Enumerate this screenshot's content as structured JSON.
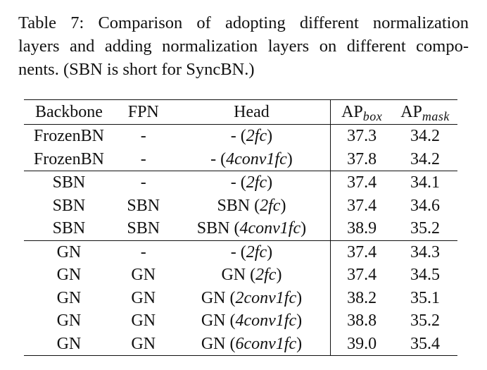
{
  "caption": {
    "lines": [
      "Table 7:  Comparison of adopting different normalization",
      "layers and adding normalization layers on different compo-",
      "nents. (SBN is short for SyncBN.)"
    ]
  },
  "table": {
    "headers": {
      "backbone": "Backbone",
      "fpn": "FPN",
      "head": "Head",
      "ap_box_main": "AP",
      "ap_box_sub": "box",
      "ap_mask_main": "AP",
      "ap_mask_sub": "mask"
    },
    "groups": [
      [
        {
          "backbone": "FrozenBN",
          "fpn": "-",
          "head_prefix": "- (",
          "head_italic": "2fc",
          "head_suffix": ")",
          "ap_box": "37.3",
          "ap_mask": "34.2"
        },
        {
          "backbone": "FrozenBN",
          "fpn": "-",
          "head_prefix": "- (",
          "head_italic": "4conv1fc",
          "head_suffix": ")",
          "ap_box": "37.8",
          "ap_mask": "34.2"
        }
      ],
      [
        {
          "backbone": "SBN",
          "fpn": "-",
          "head_prefix": "- (",
          "head_italic": "2fc",
          "head_suffix": ")",
          "ap_box": "37.4",
          "ap_mask": "34.1"
        },
        {
          "backbone": "SBN",
          "fpn": "SBN",
          "head_prefix": "SBN (",
          "head_italic": "2fc",
          "head_suffix": ")",
          "ap_box": "37.4",
          "ap_mask": "34.6"
        },
        {
          "backbone": "SBN",
          "fpn": "SBN",
          "head_prefix": "SBN (",
          "head_italic": "4conv1fc",
          "head_suffix": ")",
          "ap_box": "38.9",
          "ap_mask": "35.2"
        }
      ],
      [
        {
          "backbone": "GN",
          "fpn": "-",
          "head_prefix": "- (",
          "head_italic": "2fc",
          "head_suffix": ")",
          "ap_box": "37.4",
          "ap_mask": "34.3"
        },
        {
          "backbone": "GN",
          "fpn": "GN",
          "head_prefix": "GN (",
          "head_italic": "2fc",
          "head_suffix": ")",
          "ap_box": "37.4",
          "ap_mask": "34.5"
        },
        {
          "backbone": "GN",
          "fpn": "GN",
          "head_prefix": "GN (",
          "head_italic": "2conv1fc",
          "head_suffix": ")",
          "ap_box": "38.2",
          "ap_mask": "35.1"
        },
        {
          "backbone": "GN",
          "fpn": "GN",
          "head_prefix": "GN (",
          "head_italic": "4conv1fc",
          "head_suffix": ")",
          "ap_box": "38.8",
          "ap_mask": "35.2"
        },
        {
          "backbone": "GN",
          "fpn": "GN",
          "head_prefix": "GN (",
          "head_italic": "6conv1fc",
          "head_suffix": ")",
          "ap_box": "39.0",
          "ap_mask": "35.4"
        }
      ]
    ]
  }
}
